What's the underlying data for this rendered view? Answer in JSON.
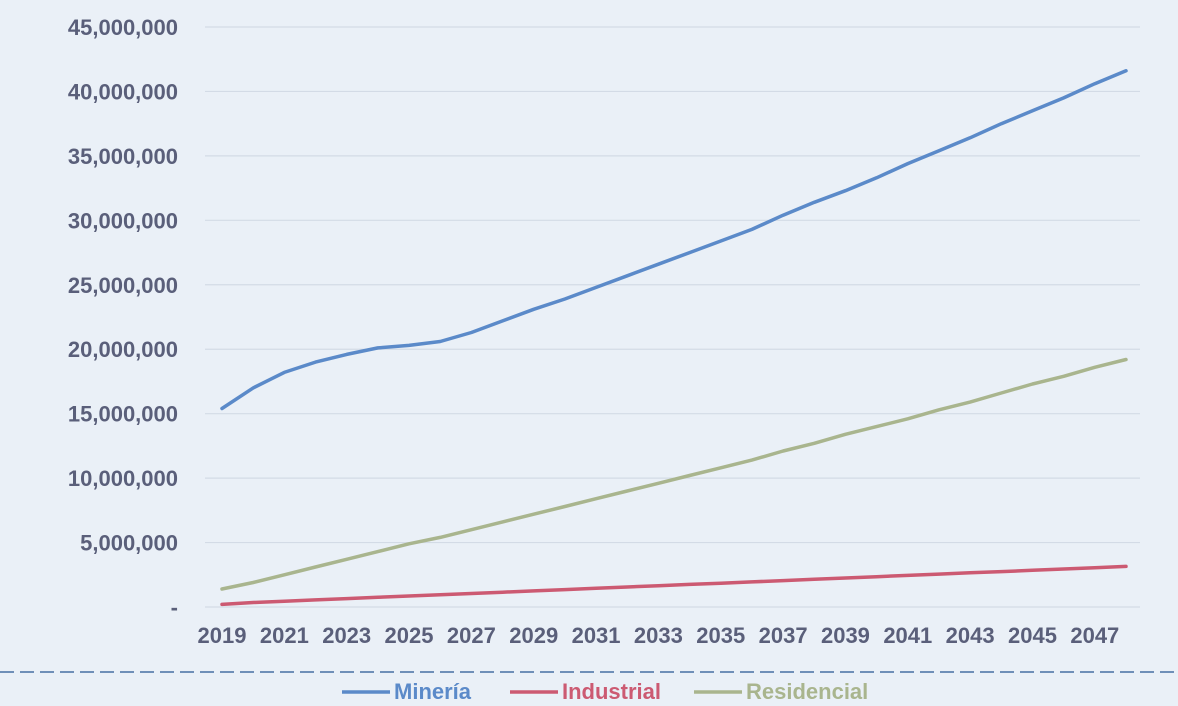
{
  "chart_data": {
    "type": "line",
    "title": "",
    "xlabel": "",
    "ylabel": "",
    "ylim": [
      0,
      45000000
    ],
    "y_tick_step": 5000000,
    "y_tick_labels": [
      "-",
      "5,000,000",
      "10,000,000",
      "15,000,000",
      "20,000,000",
      "25,000,000",
      "30,000,000",
      "35,000,000",
      "40,000,000",
      "45,000,000"
    ],
    "x": [
      2019,
      2020,
      2021,
      2022,
      2023,
      2024,
      2025,
      2026,
      2027,
      2028,
      2029,
      2030,
      2031,
      2032,
      2033,
      2034,
      2035,
      2036,
      2037,
      2038,
      2039,
      2040,
      2041,
      2042,
      2043,
      2044,
      2045,
      2046,
      2047,
      2048
    ],
    "x_tick_labels": [
      "2019",
      "2021",
      "2023",
      "2025",
      "2027",
      "2029",
      "2031",
      "2033",
      "2035",
      "2037",
      "2039",
      "2041",
      "2043",
      "2045",
      "2047"
    ],
    "grid": true,
    "legend_position": "bottom",
    "series": [
      {
        "name": "Minería",
        "color": "#5b8ac9",
        "values": [
          15400000,
          17000000,
          18200000,
          19000000,
          19600000,
          20100000,
          20300000,
          20600000,
          21300000,
          22200000,
          23100000,
          23900000,
          24800000,
          25700000,
          26600000,
          27500000,
          28400000,
          29300000,
          30400000,
          31400000,
          32300000,
          33300000,
          34400000,
          35400000,
          36400000,
          37500000,
          38500000,
          39500000,
          40600000,
          41600000
        ]
      },
      {
        "name": "Industrial",
        "color": "#cc5a72",
        "values": [
          200000,
          350000,
          450000,
          550000,
          650000,
          750000,
          850000,
          950000,
          1050000,
          1150000,
          1250000,
          1350000,
          1450000,
          1550000,
          1650000,
          1750000,
          1850000,
          1950000,
          2050000,
          2150000,
          2250000,
          2350000,
          2450000,
          2550000,
          2650000,
          2750000,
          2850000,
          2950000,
          3050000,
          3150000
        ]
      },
      {
        "name": "Residencial",
        "color": "#a9b58e",
        "values": [
          1400000,
          1900000,
          2500000,
          3100000,
          3700000,
          4300000,
          4900000,
          5400000,
          6000000,
          6600000,
          7200000,
          7800000,
          8400000,
          9000000,
          9600000,
          10200000,
          10800000,
          11400000,
          12100000,
          12700000,
          13400000,
          14000000,
          14600000,
          15300000,
          15900000,
          16600000,
          17300000,
          17900000,
          18600000,
          19200000
        ]
      }
    ]
  }
}
